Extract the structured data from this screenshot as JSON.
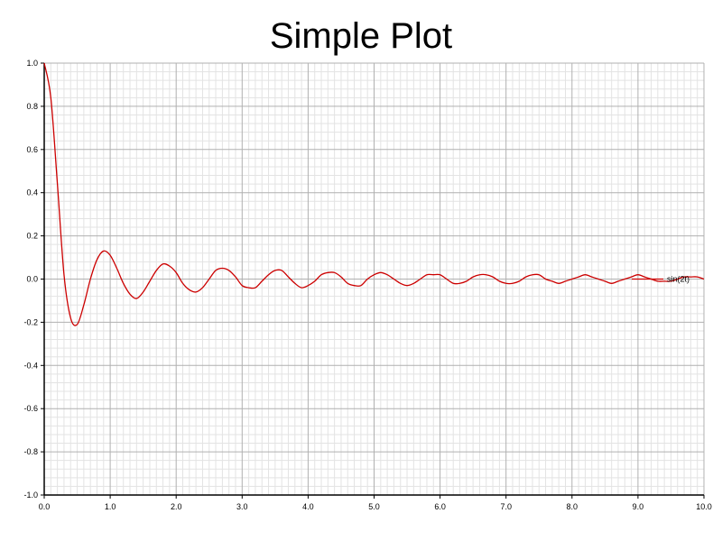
{
  "chart_data": {
    "type": "line",
    "title": "Simple Plot",
    "xlabel": "",
    "ylabel": "",
    "xlim": [
      0,
      10
    ],
    "ylim": [
      -1,
      1
    ],
    "x_ticks": [
      "0.0",
      "1.0",
      "2.0",
      "3.0",
      "4.0",
      "5.0",
      "6.0",
      "7.0",
      "8.0",
      "9.0",
      "10.0"
    ],
    "y_ticks": [
      "1.0",
      "0.8",
      "0.6",
      "0.4",
      "0.2",
      "0.0",
      "-0.2",
      "-0.4",
      "-0.6",
      "-0.8",
      "-1.0"
    ],
    "grid": true,
    "legend_position": "right",
    "series": [
      {
        "name": "sin(2t)",
        "color": "#cc0000",
        "points": [
          [
            0.0,
            1.0
          ],
          [
            0.1,
            0.84
          ],
          [
            0.2,
            0.44
          ],
          [
            0.3,
            0.02
          ],
          [
            0.4,
            -0.18
          ],
          [
            0.5,
            -0.21
          ],
          [
            0.6,
            -0.12
          ],
          [
            0.7,
            0.0
          ],
          [
            0.8,
            0.09
          ],
          [
            0.9,
            0.13
          ],
          [
            1.0,
            0.11
          ],
          [
            1.1,
            0.05
          ],
          [
            1.2,
            -0.02
          ],
          [
            1.3,
            -0.07
          ],
          [
            1.4,
            -0.09
          ],
          [
            1.5,
            -0.06
          ],
          [
            1.6,
            -0.01
          ],
          [
            1.7,
            0.04
          ],
          [
            1.8,
            0.07
          ],
          [
            1.9,
            0.06
          ],
          [
            2.0,
            0.03
          ],
          [
            2.1,
            -0.02
          ],
          [
            2.2,
            -0.05
          ],
          [
            2.3,
            -0.06
          ],
          [
            2.4,
            -0.04
          ],
          [
            2.5,
            0.0
          ],
          [
            2.6,
            0.04
          ],
          [
            2.7,
            0.05
          ],
          [
            2.8,
            0.04
          ],
          [
            2.9,
            0.01
          ],
          [
            3.0,
            -0.03
          ],
          [
            3.1,
            -0.04
          ],
          [
            3.2,
            -0.04
          ],
          [
            3.3,
            -0.01
          ],
          [
            3.4,
            0.02
          ],
          [
            3.5,
            0.04
          ],
          [
            3.6,
            0.04
          ],
          [
            3.7,
            0.01
          ],
          [
            3.8,
            -0.02
          ],
          [
            3.9,
            -0.04
          ],
          [
            4.0,
            -0.03
          ],
          [
            4.1,
            -0.01
          ],
          [
            4.2,
            0.02
          ],
          [
            4.3,
            0.03
          ],
          [
            4.4,
            0.03
          ],
          [
            4.5,
            0.01
          ],
          [
            4.6,
            -0.02
          ],
          [
            4.7,
            -0.03
          ],
          [
            4.8,
            -0.03
          ],
          [
            4.9,
            0.0
          ],
          [
            5.0,
            0.02
          ],
          [
            5.1,
            0.03
          ],
          [
            5.2,
            0.02
          ],
          [
            5.3,
            0.0
          ],
          [
            5.4,
            -0.02
          ],
          [
            5.5,
            -0.03
          ],
          [
            5.6,
            -0.02
          ],
          [
            5.7,
            0.0
          ],
          [
            5.8,
            0.02
          ],
          [
            5.9,
            0.02
          ],
          [
            6.0,
            0.02
          ],
          [
            6.1,
            0.0
          ],
          [
            6.2,
            -0.02
          ],
          [
            6.3,
            -0.02
          ],
          [
            6.4,
            -0.01
          ],
          [
            6.5,
            0.01
          ],
          [
            6.6,
            0.02
          ],
          [
            6.7,
            0.02
          ],
          [
            6.8,
            0.01
          ],
          [
            6.9,
            -0.01
          ],
          [
            7.0,
            -0.02
          ],
          [
            7.1,
            -0.02
          ],
          [
            7.2,
            -0.01
          ],
          [
            7.3,
            0.01
          ],
          [
            7.4,
            0.02
          ],
          [
            7.5,
            0.02
          ],
          [
            7.6,
            0.0
          ],
          [
            7.7,
            -0.01
          ],
          [
            7.8,
            -0.02
          ],
          [
            7.9,
            -0.01
          ],
          [
            8.0,
            0.0
          ],
          [
            8.1,
            0.01
          ],
          [
            8.2,
            0.02
          ],
          [
            8.3,
            0.01
          ],
          [
            8.4,
            0.0
          ],
          [
            8.5,
            -0.01
          ],
          [
            8.6,
            -0.02
          ],
          [
            8.7,
            -0.01
          ],
          [
            8.8,
            0.0
          ],
          [
            8.9,
            0.01
          ],
          [
            9.0,
            0.02
          ],
          [
            9.1,
            0.01
          ],
          [
            9.2,
            0.0
          ],
          [
            9.3,
            -0.01
          ],
          [
            9.4,
            -0.01
          ],
          [
            9.5,
            -0.01
          ],
          [
            9.6,
            0.0
          ],
          [
            9.7,
            0.01
          ],
          [
            9.8,
            0.01
          ],
          [
            9.9,
            0.01
          ],
          [
            10.0,
            0.0
          ]
        ]
      }
    ]
  }
}
